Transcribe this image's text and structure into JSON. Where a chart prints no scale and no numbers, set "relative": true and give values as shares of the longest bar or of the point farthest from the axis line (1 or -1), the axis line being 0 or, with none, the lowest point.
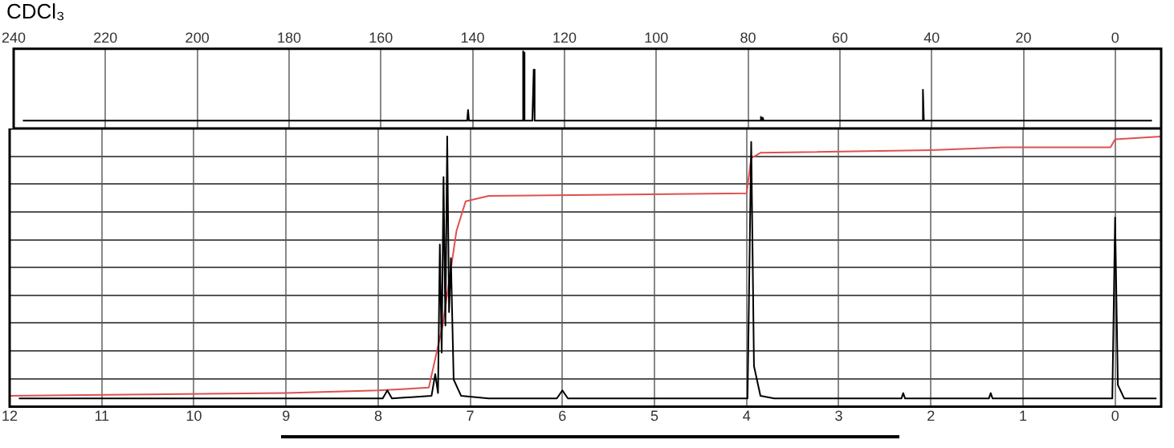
{
  "chart_data": [
    {
      "type": "line",
      "title": "CDCl₃",
      "relative": true,
      "grid": "x",
      "xlim": [
        240,
        -10
      ],
      "xticks": [
        240,
        220,
        200,
        180,
        160,
        140,
        120,
        100,
        80,
        60,
        40,
        20,
        0
      ],
      "series": [
        {
          "color": "#000000",
          "x": [
            238,
            142,
            141.2,
            141,
            140.8,
            130,
            129.2,
            129.0,
            128.9,
            128.8,
            128.6,
            127,
            126.9,
            126.7,
            126.5,
            78,
            77.4,
            77.2,
            77,
            76.8,
            76.6,
            42.3,
            42.1,
            41.9,
            41.7,
            -8
          ],
          "values": [
            0.1,
            0.1,
            0.1,
            0.24,
            0.1,
            0.1,
            0.1,
            1.0,
            0.1,
            0.98,
            0.1,
            0.1,
            0.1,
            0.76,
            0.1,
            0.1,
            0.1,
            0.15,
            0.1,
            0.14,
            0.1,
            0.1,
            0.1,
            0.5,
            0.1,
            0.1
          ]
        }
      ]
    },
    {
      "type": "line",
      "relative": true,
      "grid": true,
      "xlim": [
        12,
        -0.5
      ],
      "xticks": [
        12,
        11,
        10,
        9,
        8,
        7,
        6,
        5,
        4,
        3,
        2,
        1,
        0
      ],
      "series": [
        {
          "color": "#000000",
          "x": [
            11.9,
            7.95,
            7.9,
            7.85,
            7.42,
            7.38,
            7.35,
            7.33,
            7.31,
            7.29,
            7.27,
            7.25,
            7.23,
            7.21,
            7.18,
            7.1,
            6.8,
            6.06,
            6.0,
            5.94,
            3.99,
            3.95,
            3.92,
            3.85,
            3.7,
            2.32,
            2.3,
            2.28,
            1.37,
            1.35,
            1.33,
            0.03,
            0,
            -0.03,
            -0.1,
            -0.45
          ],
          "values": [
            0.03,
            0.03,
            0.06,
            0.03,
            0.04,
            0.12,
            0.05,
            0.6,
            0.2,
            0.85,
            0.3,
            1.0,
            0.35,
            0.55,
            0.1,
            0.04,
            0.03,
            0.03,
            0.06,
            0.03,
            0.03,
            0.98,
            0.15,
            0.04,
            0.03,
            0.03,
            0.05,
            0.03,
            0.03,
            0.05,
            0.03,
            0.03,
            0.7,
            0.08,
            0.03,
            0.03
          ]
        },
        {
          "color": "#e05050",
          "x": [
            12,
            9,
            8,
            7.45,
            7.3,
            7.15,
            7.05,
            6.8,
            4.0,
            3.95,
            3.85,
            2.0,
            1.2,
            0.05,
            0,
            -0.5
          ],
          "values": [
            0.04,
            0.05,
            0.06,
            0.07,
            0.3,
            0.65,
            0.76,
            0.78,
            0.79,
            0.92,
            0.94,
            0.95,
            0.96,
            0.96,
            0.99,
            1.0
          ]
        }
      ]
    }
  ]
}
